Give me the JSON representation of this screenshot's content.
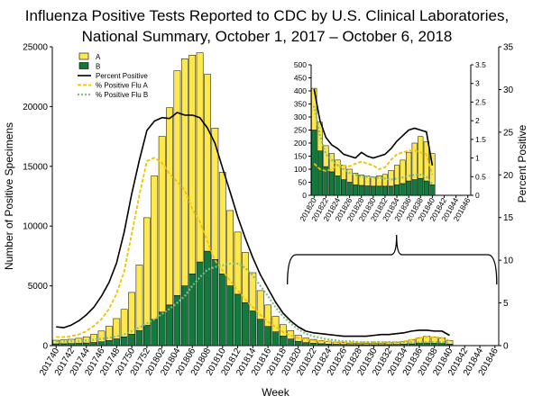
{
  "title_lines": [
    "Influenza Positive Tests Reported to CDC by U.S. Clinical Laboratories,",
    "National Summary, October 1, 2017 – October 6, 2018"
  ],
  "colors": {
    "a": "#fde84d",
    "b": "#127a3c",
    "percent_positive": "#000000",
    "pct_a": "#f2c200",
    "pct_b": "#83c07a",
    "bar_edge": "#000000"
  },
  "chart_data": [
    {
      "id": "main",
      "type": "bar",
      "stacked": true,
      "title": "Influenza Positive Tests Reported to CDC by U.S. Clinical Laboratories, National Summary, October 1, 2017 – October 6, 2018",
      "xlabel": "Week",
      "ylabel": "Number of Positive Specimens",
      "y2label": "Percent Positive",
      "ylim": [
        0,
        25000
      ],
      "y2lim": [
        0,
        35
      ],
      "yticks": [
        0,
        5000,
        10000,
        15000,
        20000,
        25000
      ],
      "y2ticks": [
        0,
        5,
        10,
        15,
        20,
        25,
        30,
        35
      ],
      "grid": false,
      "legend_position": "top-left",
      "weeks": [
        "201740",
        "201741",
        "201742",
        "201743",
        "201744",
        "201745",
        "201746",
        "201747",
        "201748",
        "201749",
        "201750",
        "201751",
        "201752",
        "201801",
        "201802",
        "201803",
        "201804",
        "201805",
        "201806",
        "201807",
        "201808",
        "201809",
        "201810",
        "201811",
        "201812",
        "201813",
        "201814",
        "201815",
        "201816",
        "201817",
        "201818",
        "201819",
        "201820",
        "201821",
        "201822",
        "201823",
        "201824",
        "201825",
        "201826",
        "201827",
        "201828",
        "201829",
        "201830",
        "201831",
        "201832",
        "201833",
        "201834",
        "201835",
        "201836",
        "201837",
        "201838",
        "201839",
        "201840",
        "201841",
        "201842",
        "201843",
        "201844",
        "201845",
        "201846"
      ],
      "tick_labels": [
        "201740",
        "201742",
        "201744",
        "201746",
        "201748",
        "201750",
        "201752",
        "201802",
        "201804",
        "201806",
        "201808",
        "201810",
        "201812",
        "201814",
        "201816",
        "201818",
        "201820",
        "201822",
        "201824",
        "201826",
        "201828",
        "201830",
        "201832",
        "201834",
        "201836",
        "201838",
        "201840",
        "201842",
        "201844",
        "201846"
      ],
      "series": [
        {
          "name": "A",
          "kind": "bar",
          "values": [
            300,
            320,
            360,
            420,
            520,
            680,
            900,
            1200,
            1700,
            2300,
            3500,
            5500,
            9000,
            12000,
            14700,
            16500,
            18800,
            19000,
            18300,
            17500,
            14800,
            11000,
            8500,
            6300,
            5200,
            4200,
            3200,
            2400,
            1800,
            1300,
            950,
            700,
            500,
            380,
            320,
            260,
            200,
            180,
            150,
            130,
            120,
            110,
            120,
            130,
            150,
            180,
            230,
            320,
            450,
            550,
            520,
            480,
            300,
            0,
            0,
            0,
            0,
            0,
            0
          ]
        },
        {
          "name": "B",
          "kind": "bar",
          "values": [
            150,
            160,
            170,
            190,
            220,
            260,
            320,
            420,
            560,
            730,
            950,
            1250,
            1700,
            2200,
            2800,
            3400,
            4200,
            5000,
            6000,
            7000,
            7900,
            7200,
            6000,
            5000,
            4300,
            3600,
            2900,
            2200,
            1600,
            1150,
            800,
            550,
            360,
            250,
            200,
            160,
            130,
            110,
            95,
            85,
            80,
            75,
            75,
            80,
            90,
            100,
            120,
            150,
            190,
            220,
            200,
            180,
            120,
            0,
            0,
            0,
            0,
            0,
            0
          ]
        },
        {
          "name": "Percent Positive",
          "kind": "line",
          "axis": "right",
          "values": [
            2.2,
            2.1,
            2.4,
            2.9,
            3.6,
            4.5,
            5.8,
            7.4,
            9.7,
            13.3,
            17.8,
            21.7,
            25.2,
            26.3,
            26.7,
            26.6,
            27.3,
            27.0,
            27.0,
            26.7,
            25.5,
            23.7,
            20.8,
            18.0,
            15.1,
            12.6,
            10.3,
            8.3,
            6.7,
            5.1,
            3.8,
            2.9,
            2.2,
            1.7,
            1.5,
            1.4,
            1.3,
            1.2,
            1.1,
            1.1,
            1.1,
            1.1,
            1.2,
            1.3,
            1.3,
            1.4,
            1.5,
            1.7,
            1.8,
            1.8,
            1.7,
            1.7,
            1.2,
            null,
            null,
            null,
            null,
            null,
            null
          ]
        },
        {
          "name": "% Positive Flu A",
          "kind": "line",
          "axis": "right",
          "values": [
            1.0,
            1.0,
            1.1,
            1.3,
            1.7,
            2.3,
            3.1,
            4.3,
            6.1,
            8.7,
            13.1,
            17.6,
            21.6,
            22.0,
            21.4,
            20.1,
            19.2,
            18.2,
            16.0,
            14.5,
            12.2,
            10.0,
            8.8,
            7.6,
            6.5,
            5.4,
            4.5,
            3.6,
            2.8,
            2.2,
            1.6,
            1.2,
            0.9,
            0.7,
            0.6,
            0.5,
            0.5,
            0.4,
            0.4,
            0.4,
            0.4,
            0.4,
            0.4,
            0.4,
            0.4,
            0.4,
            0.5,
            0.7,
            0.9,
            1.0,
            1.0,
            0.9,
            0.6,
            null,
            null,
            null,
            null,
            null,
            null
          ]
        },
        {
          "name": "% Positive Flu B",
          "kind": "line",
          "axis": "right",
          "values": [
            0.5,
            0.5,
            0.5,
            0.5,
            0.6,
            0.7,
            0.8,
            0.9,
            1.1,
            1.3,
            1.7,
            2.1,
            2.6,
            3.1,
            3.7,
            4.3,
            5.0,
            5.8,
            7.0,
            8.0,
            8.9,
            9.2,
            9.4,
            9.6,
            9.6,
            9.1,
            8.2,
            7.0,
            5.8,
            4.5,
            3.4,
            2.6,
            1.9,
            1.4,
            1.1,
            0.9,
            0.7,
            0.6,
            0.5,
            0.5,
            0.4,
            0.4,
            0.4,
            0.4,
            0.4,
            0.4,
            0.4,
            0.4,
            0.4,
            0.4,
            0.4,
            0.4,
            0.3,
            null,
            null,
            null,
            null,
            null,
            null
          ]
        }
      ]
    },
    {
      "id": "inset",
      "type": "bar",
      "stacked": true,
      "ylim": [
        0,
        500
      ],
      "y2lim": [
        0,
        3.5
      ],
      "yticks": [
        0,
        50,
        100,
        150,
        200,
        250,
        300,
        350,
        400,
        450,
        500
      ],
      "y2ticks": [
        0,
        0.5,
        1,
        1.5,
        2,
        2.5,
        3,
        3.5
      ],
      "grid": false,
      "weeks": [
        "201820",
        "201821",
        "201822",
        "201823",
        "201824",
        "201825",
        "201826",
        "201827",
        "201828",
        "201829",
        "201830",
        "201831",
        "201832",
        "201833",
        "201834",
        "201835",
        "201836",
        "201837",
        "201838",
        "201839",
        "201840",
        "201841",
        "201842",
        "201843",
        "201844",
        "201845",
        "201846"
      ],
      "tick_labels": [
        "201820",
        "201822",
        "201824",
        "201826",
        "201828",
        "201830",
        "201832",
        "201834",
        "201836",
        "201838",
        "201840",
        "201842",
        "201844",
        "201846"
      ],
      "series": [
        {
          "name": "A",
          "kind": "bar",
          "values": [
            160,
            110,
            80,
            70,
            60,
            55,
            50,
            45,
            40,
            38,
            35,
            40,
            45,
            60,
            75,
            90,
            110,
            140,
            160,
            150,
            120,
            0,
            0,
            0,
            0,
            0,
            0
          ]
        },
        {
          "name": "B",
          "kind": "bar",
          "values": [
            250,
            170,
            110,
            90,
            75,
            60,
            50,
            40,
            38,
            36,
            35,
            35,
            35,
            35,
            40,
            45,
            55,
            60,
            65,
            55,
            40,
            0,
            0,
            0,
            0,
            0,
            0
          ]
        },
        {
          "name": "Percent Positive",
          "kind": "line",
          "axis": "right",
          "values": [
            2.85,
            2.0,
            1.55,
            1.35,
            1.25,
            1.1,
            1.05,
            1.0,
            1.15,
            1.05,
            1.0,
            1.05,
            1.1,
            1.25,
            1.45,
            1.6,
            1.75,
            1.8,
            1.75,
            1.7,
            0.8,
            null,
            null,
            null,
            null,
            null,
            null
          ]
        },
        {
          "name": "% Positive Flu A",
          "kind": "line",
          "axis": "right",
          "values": [
            0.85,
            0.7,
            0.65,
            0.7,
            0.8,
            0.8,
            0.78,
            0.85,
            0.9,
            0.85,
            0.8,
            0.7,
            0.75,
            0.95,
            1.1,
            1.15,
            1.2,
            1.2,
            1.15,
            1.1,
            0.55,
            null,
            null,
            null,
            null,
            null,
            null
          ]
        },
        {
          "name": "% Positive Flu B",
          "kind": "line",
          "axis": "right",
          "values": [
            2.4,
            1.6,
            1.1,
            0.95,
            0.8,
            0.7,
            0.6,
            0.55,
            0.5,
            0.5,
            0.48,
            0.47,
            0.45,
            0.42,
            0.45,
            0.48,
            0.52,
            0.55,
            0.55,
            0.5,
            0.3,
            null,
            null,
            null,
            null,
            null,
            null
          ]
        }
      ]
    }
  ]
}
